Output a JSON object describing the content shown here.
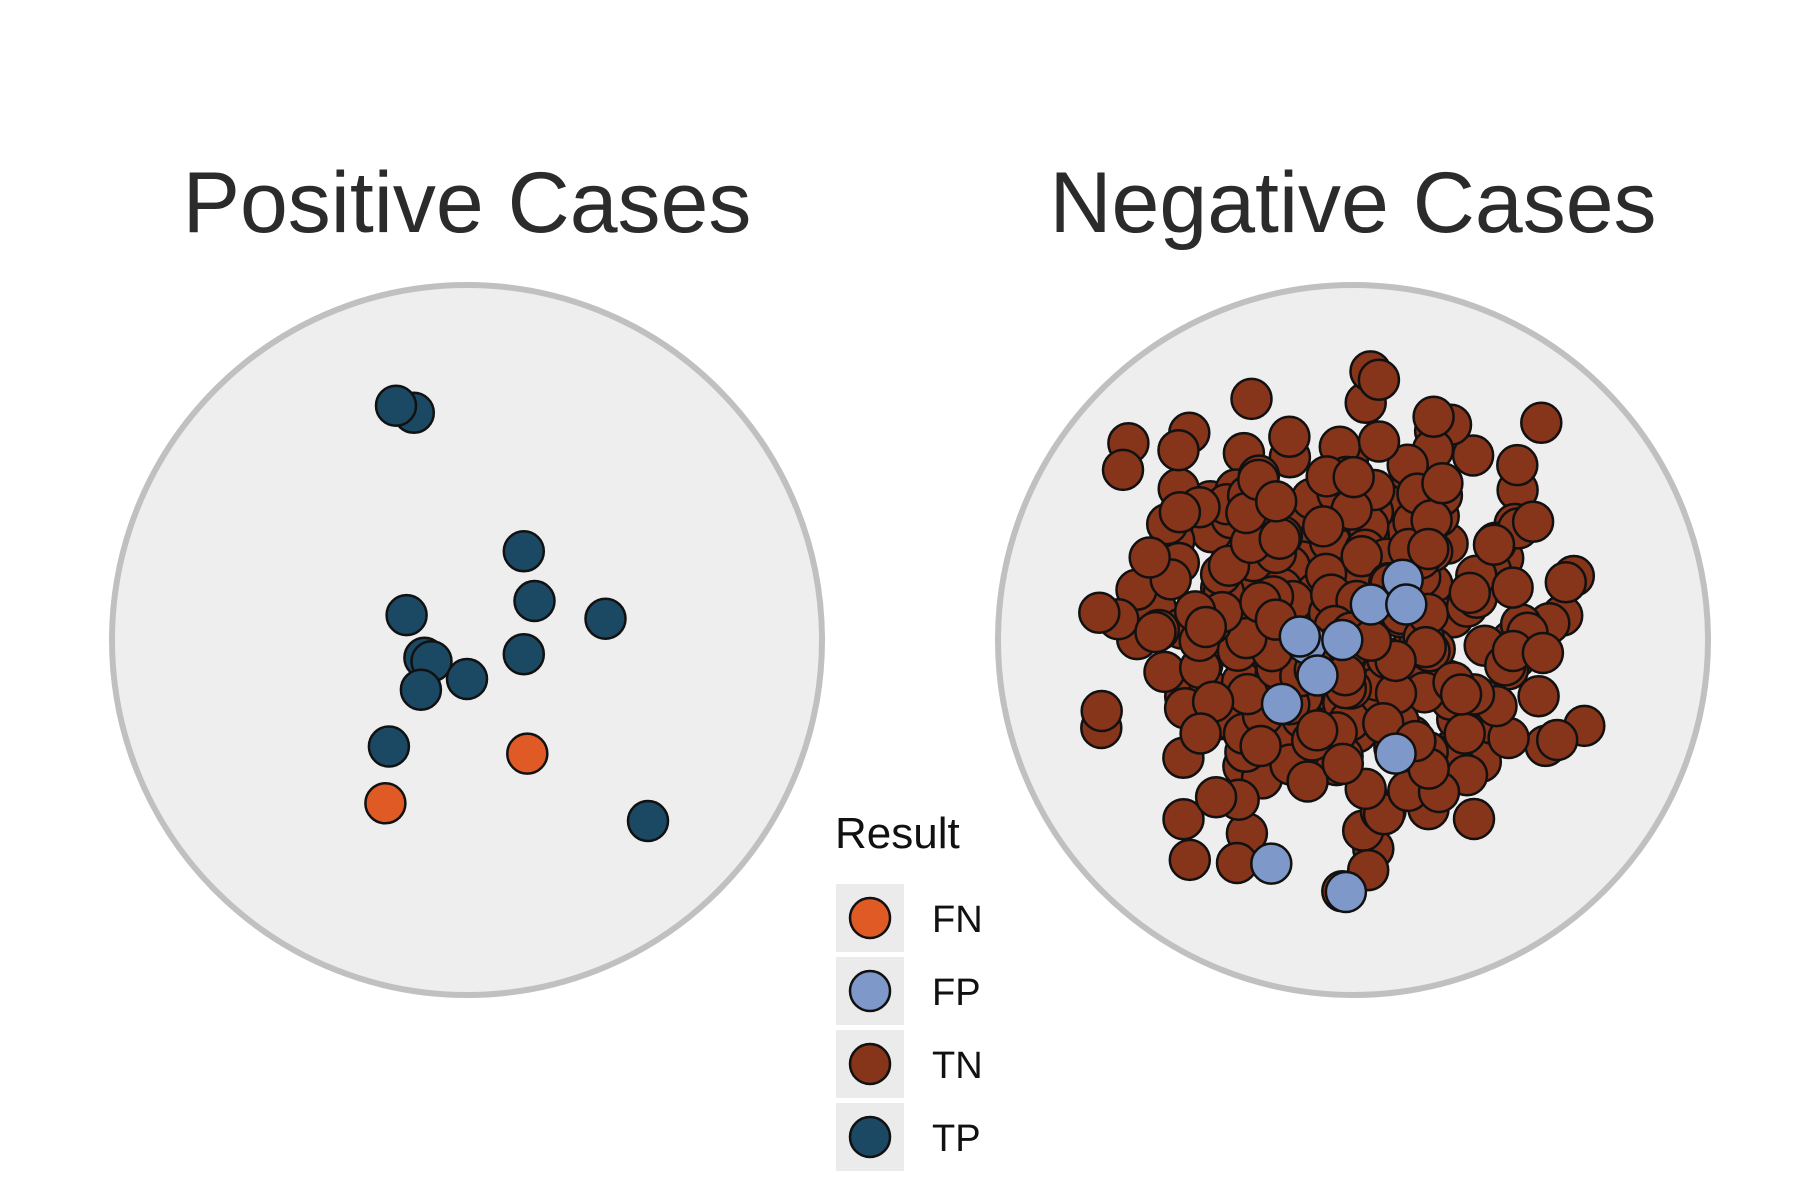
{
  "chart_data": {
    "type": "scatter",
    "panels": [
      {
        "title": "Positive Cases",
        "counts": {
          "TP": 13,
          "FN": 2
        },
        "points": [
          {
            "x": -0.15,
            "y": 0.64,
            "r": "TP"
          },
          {
            "x": 0.16,
            "y": 0.25,
            "r": "TP"
          },
          {
            "x": 0.19,
            "y": 0.11,
            "r": "TP"
          },
          {
            "x": -0.17,
            "y": 0.07,
            "r": "TP"
          },
          {
            "x": 0.39,
            "y": 0.06,
            "r": "TP"
          },
          {
            "x": 0.16,
            "y": -0.04,
            "r": "TP"
          },
          {
            "x": -0.12,
            "y": -0.05,
            "r": "TP"
          },
          {
            "x": -0.1,
            "y": -0.06,
            "r": "TP"
          },
          {
            "x": 0.0,
            "y": -0.11,
            "r": "TP"
          },
          {
            "x": -0.13,
            "y": -0.14,
            "r": "TP"
          },
          {
            "x": -0.22,
            "y": -0.3,
            "r": "TP"
          },
          {
            "x": 0.51,
            "y": -0.51,
            "r": "TP"
          },
          {
            "x": 0.17,
            "y": -0.32,
            "r": "FN"
          },
          {
            "x": -0.23,
            "y": -0.46,
            "r": "FN"
          },
          {
            "x": -0.2,
            "y": 0.66,
            "r": "TP"
          }
        ]
      },
      {
        "title": "Negative Cases",
        "counts": {
          "TN": 330,
          "FP": 11
        },
        "points": [
          {
            "x": 0.14,
            "y": 0.17,
            "r": "FP"
          },
          {
            "x": 0.05,
            "y": 0.1,
            "r": "FP"
          },
          {
            "x": 0.15,
            "y": 0.1,
            "r": "FP"
          },
          {
            "x": -0.13,
            "y": -0.01,
            "r": "FP"
          },
          {
            "x": -0.15,
            "y": 0.01,
            "r": "FP"
          },
          {
            "x": -0.03,
            "y": 0.0,
            "r": "FP"
          },
          {
            "x": -0.1,
            "y": -0.1,
            "r": "FP"
          },
          {
            "x": -0.2,
            "y": -0.18,
            "r": "FP"
          },
          {
            "x": 0.12,
            "y": -0.32,
            "r": "FP"
          },
          {
            "x": -0.23,
            "y": -0.63,
            "r": "FP"
          },
          {
            "x": -0.02,
            "y": -0.71,
            "r": "FP"
          }
        ],
        "tn_spread": {
          "x_range": [
            -0.8,
            0.67
          ],
          "y_range": [
            -0.71,
            0.85
          ]
        }
      }
    ],
    "legend": {
      "title": "Result",
      "placement": "bottom-center",
      "items": [
        {
          "label": "FN",
          "color": "#E05A25"
        },
        {
          "label": "FP",
          "color": "#7E98C9"
        },
        {
          "label": "TN",
          "color": "#86341A"
        },
        {
          "label": "TP",
          "color": "#1B4964"
        }
      ]
    },
    "colors": {
      "panel_fill": "#EEEEEE",
      "panel_stroke": "#C0C0C0",
      "point_stroke": "#111111",
      "legend_key_bg": "#EBEBEB"
    },
    "xlim": [
      -1,
      1
    ],
    "ylim": [
      -1,
      1
    ],
    "grid": false
  }
}
